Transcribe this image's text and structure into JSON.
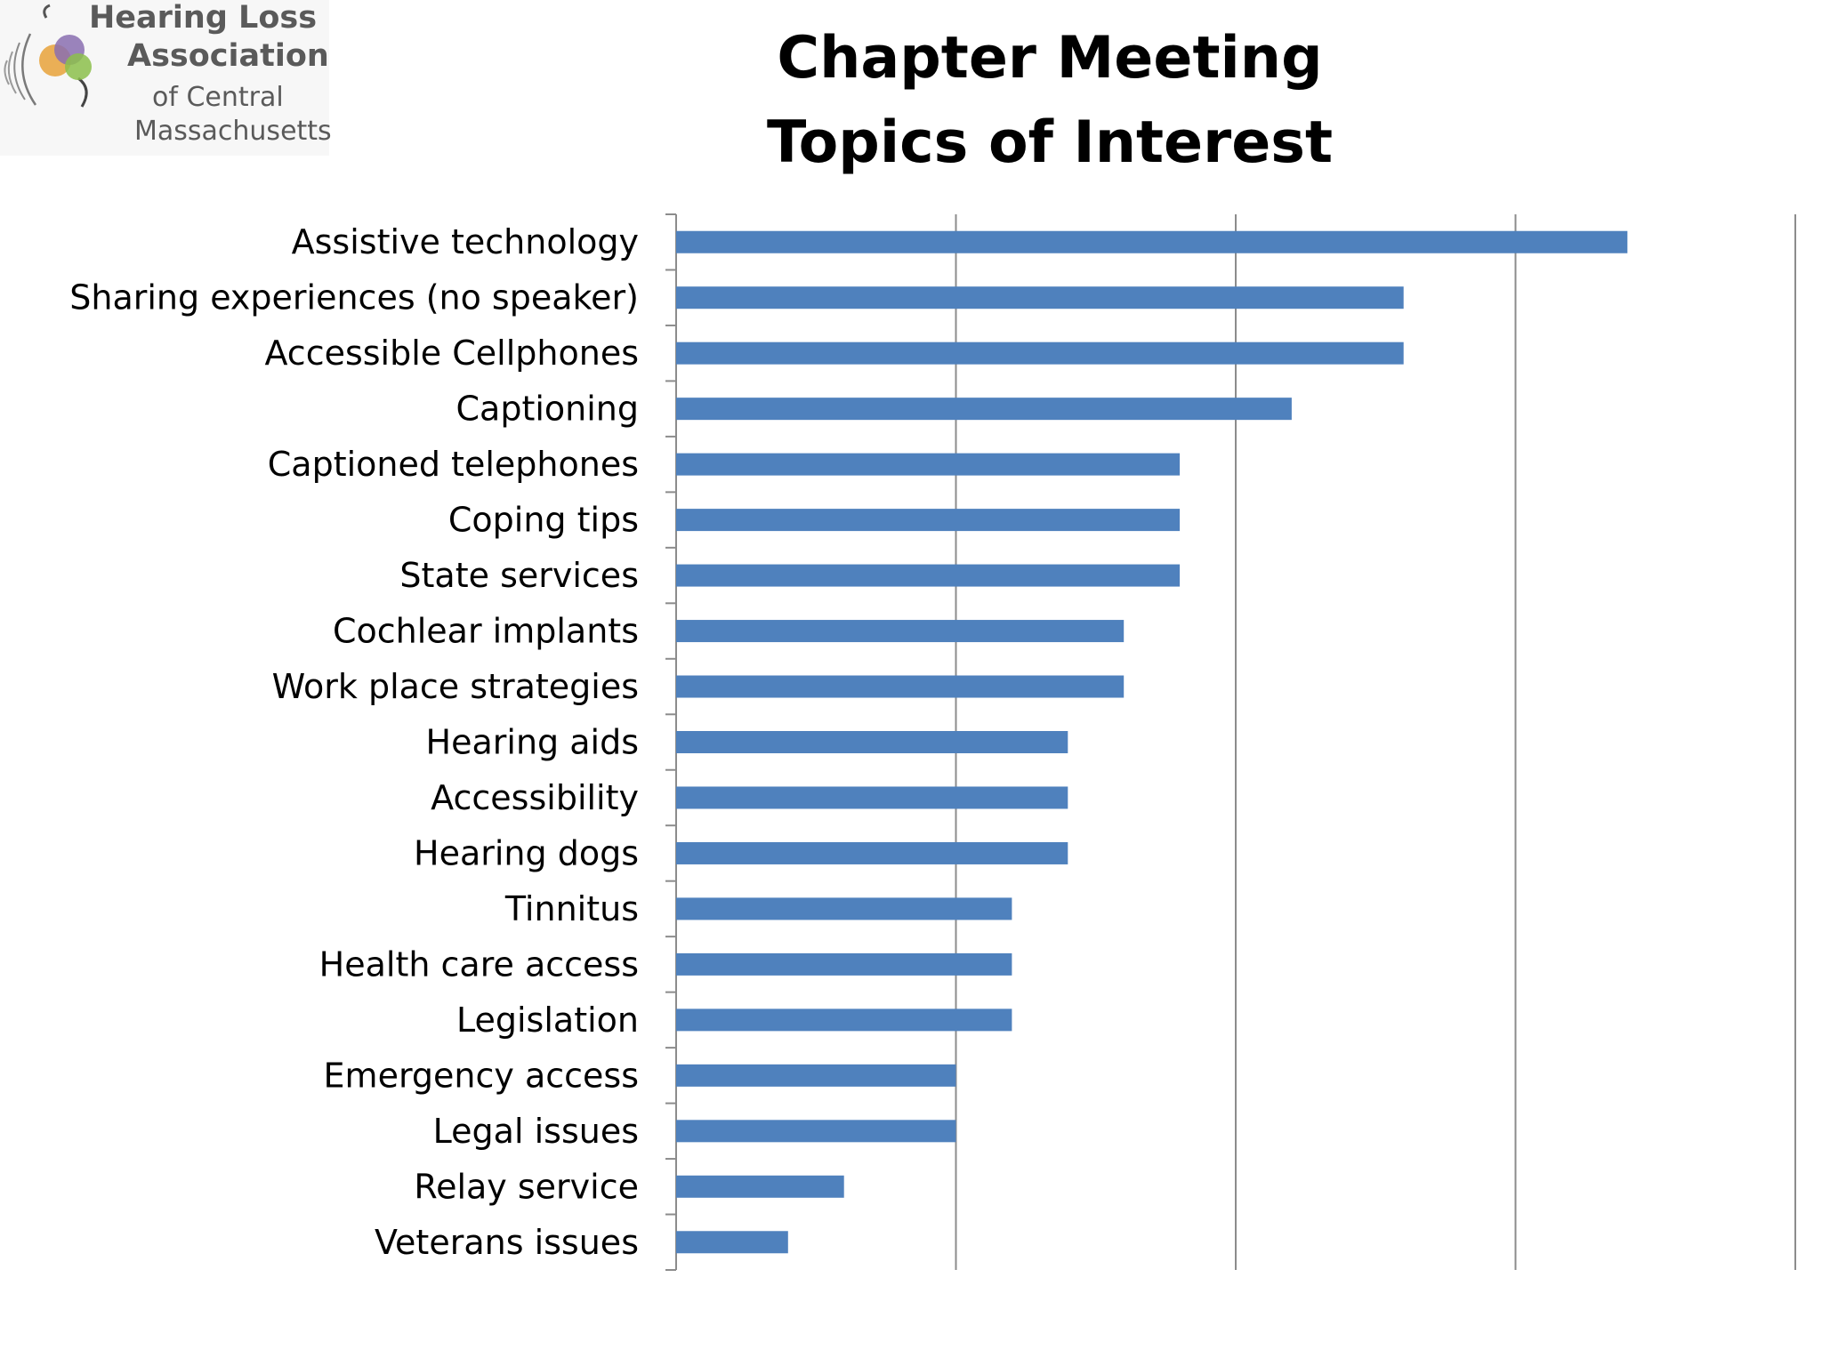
{
  "logo": {
    "line1": "Hearing Loss",
    "line2": "Association",
    "line3": "of Central",
    "line4": "Massachusetts"
  },
  "title": {
    "line1": "Chapter Meeting",
    "line2": "Topics of Interest"
  },
  "colors": {
    "bar": "#4f81bd",
    "grid": "#8c8c8c",
    "axis": "#8c8c8c"
  },
  "chart_data": {
    "type": "bar",
    "orientation": "horizontal",
    "title": "Chapter Meeting Topics of Interest",
    "xlabel": "",
    "ylabel": "",
    "xlim": [
      0,
      20
    ],
    "x_gridlines": [
      5,
      10,
      15,
      20
    ],
    "x_tick_labels_shown": false,
    "grid": true,
    "categories": [
      "Assistive technology",
      "Sharing experiences (no speaker)",
      "Accessible Cellphones",
      "Captioning",
      "Captioned telephones",
      "Coping tips",
      "State services",
      "Cochlear implants",
      "Work place strategies",
      "Hearing aids",
      "Accessibility",
      "Hearing dogs",
      "Tinnitus",
      "Health care access",
      "Legislation",
      "Emergency access",
      "Legal issues",
      "Relay service",
      "Veterans issues"
    ],
    "values": [
      17,
      13,
      13,
      11,
      9,
      9,
      9,
      8,
      8,
      7,
      7,
      7,
      6,
      6,
      6,
      5,
      5,
      3,
      2
    ]
  }
}
